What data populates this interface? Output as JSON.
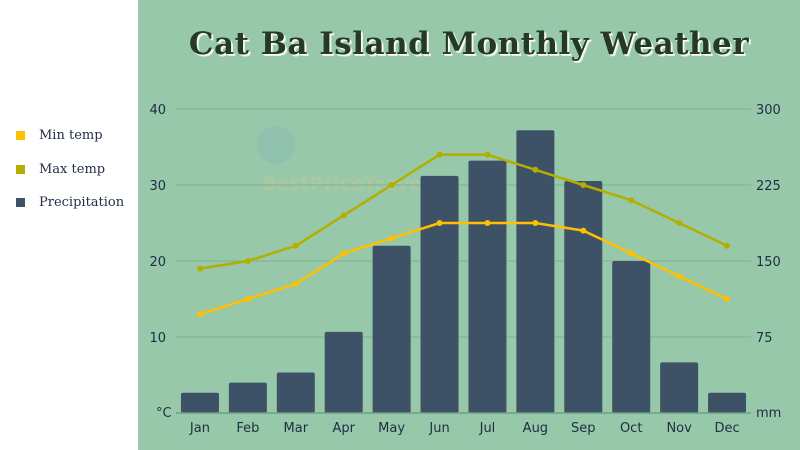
{
  "title": "Cat Ba Island Monthly Weather",
  "watermark": "BestPriceTravel",
  "legend": [
    {
      "label": "Min temp",
      "color": "#ffc000"
    },
    {
      "label": "Max temp",
      "color": "#b5ad00"
    },
    {
      "label": "Precipitation",
      "color": "#3d5266"
    }
  ],
  "chart_data": {
    "type": "bar+line",
    "title": "Cat Ba Island Monthly Weather",
    "categories": [
      "Jan",
      "Feb",
      "Mar",
      "Apr",
      "May",
      "Jun",
      "Jul",
      "Aug",
      "Sep",
      "Oct",
      "Nov",
      "Dec"
    ],
    "series": [
      {
        "name": "Min temp",
        "type": "line",
        "axis": "left",
        "color": "#ffc000",
        "values": [
          13,
          15,
          17,
          21,
          23,
          25,
          25,
          25,
          24,
          21,
          18,
          15
        ]
      },
      {
        "name": "Max temp",
        "type": "line",
        "axis": "left",
        "color": "#b5ad00",
        "values": [
          19,
          20,
          22,
          26,
          30,
          34,
          34,
          32,
          30,
          28,
          25,
          22
        ]
      },
      {
        "name": "Precipitation",
        "type": "bar",
        "axis": "right",
        "color": "#3d5266",
        "values": [
          20,
          30,
          40,
          80,
          165,
          234,
          249,
          279,
          229,
          150,
          50,
          20
        ]
      }
    ],
    "y_left": {
      "unit": "°C",
      "range": [
        0,
        40
      ],
      "ticks": [
        10,
        20,
        30,
        40
      ]
    },
    "y_right": {
      "unit": "mm",
      "range": [
        0,
        300
      ],
      "ticks": [
        75,
        150,
        225,
        300
      ]
    },
    "grid": true,
    "legend_position": "left"
  }
}
